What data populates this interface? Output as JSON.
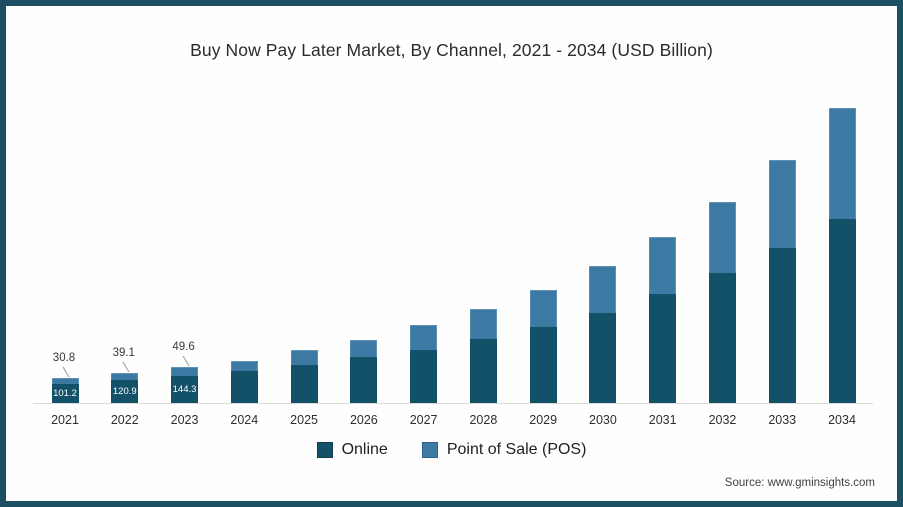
{
  "frame": {
    "border_color": "#1c4f63",
    "background": "#fefefe"
  },
  "title": "Buy Now Pay Later Market, By Channel, 2021 - 2034 (USD Billion)",
  "source": "Source: www.gminsights.com",
  "legend": [
    {
      "label": "Online",
      "color": "#135169"
    },
    {
      "label": "Point of Sale (POS)",
      "color": "#3c7aa4"
    }
  ],
  "chart_data": {
    "type": "bar",
    "stacked": true,
    "title": "Buy Now Pay Later Market, By Channel, 2021 - 2034 (USD Billion)",
    "unit": "USD Billion",
    "categories": [
      "2021",
      "2022",
      "2023",
      "2024",
      "2025",
      "2026",
      "2027",
      "2028",
      "2029",
      "2030",
      "2031",
      "2032",
      "2033",
      "2034"
    ],
    "series": [
      {
        "name": "Online",
        "color": "#135169",
        "values": [
          101.2,
          120.9,
          144.3,
          171,
          202,
          246,
          286,
          341,
          405,
          484,
          583,
          696,
          829,
          984
        ]
      },
      {
        "name": "Point of Sale (POS)",
        "color": "#3c7aa4",
        "values": [
          30.8,
          39.1,
          49.6,
          54,
          80,
          93,
          130,
          160,
          202,
          248,
          305,
          380,
          471,
          594
        ]
      }
    ],
    "data_labels": [
      {
        "category": "2021",
        "callout": "30.8",
        "inside": "101.2"
      },
      {
        "category": "2022",
        "callout": "39.1",
        "inside": "120.9"
      },
      {
        "category": "2023",
        "callout": "49.6",
        "inside": "144.3"
      }
    ],
    "legend_position": "bottom",
    "y_axis_visible": false,
    "gridlines": false,
    "ylim": [
      0,
      1600
    ]
  }
}
